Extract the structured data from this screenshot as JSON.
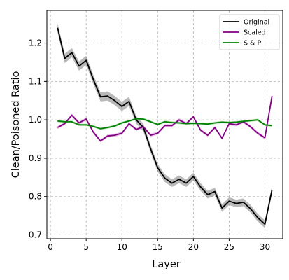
{
  "chart_data": {
    "type": "line",
    "title": "",
    "xlabel": "Layer",
    "ylabel": "Clean/Poisoned Ratio",
    "xlim": [
      -0.5,
      32.5
    ],
    "ylim": [
      0.69,
      1.285
    ],
    "xticks": [
      0,
      5,
      10,
      15,
      20,
      25,
      30
    ],
    "yticks": [
      0.7,
      0.8,
      0.9,
      1.0,
      1.1,
      1.2
    ],
    "xtick_labels": [
      "0",
      "5",
      "10",
      "15",
      "20",
      "25",
      "30"
    ],
    "ytick_labels": [
      "0.7",
      "0.8",
      "0.9",
      "1.0",
      "1.1",
      "1.2"
    ],
    "grid": true,
    "legend_position": "top-right",
    "x": [
      1,
      2,
      3,
      4,
      5,
      6,
      7,
      8,
      9,
      10,
      11,
      12,
      13,
      14,
      15,
      16,
      17,
      18,
      19,
      20,
      21,
      22,
      23,
      24,
      25,
      26,
      27,
      28,
      29,
      30,
      31
    ],
    "series": [
      {
        "name": "Original",
        "color": "#000000",
        "band_color": "#808080",
        "values": [
          1.24,
          1.16,
          1.175,
          1.14,
          1.155,
          1.105,
          1.06,
          1.062,
          1.05,
          1.035,
          1.048,
          1.0,
          0.98,
          0.925,
          0.875,
          0.848,
          0.835,
          0.845,
          0.835,
          0.852,
          0.825,
          0.805,
          0.813,
          0.77,
          0.788,
          0.782,
          0.785,
          0.768,
          0.745,
          0.728,
          0.818
        ],
        "band": [
          0.012,
          0.012,
          0.012,
          0.012,
          0.012,
          0.012,
          0.012,
          0.012,
          0.012,
          0.012,
          0.012,
          0.01,
          0.01,
          0.01,
          0.01,
          0.01,
          0.01,
          0.01,
          0.01,
          0.01,
          0.01,
          0.01,
          0.01,
          0.01,
          0.01,
          0.01,
          0.01,
          0.01,
          0.01,
          0.01,
          0.01
        ]
      },
      {
        "name": "Scaled",
        "color": "#800080",
        "band_color": "#d58cd5",
        "values": [
          0.98,
          0.99,
          1.012,
          0.992,
          1.002,
          0.968,
          0.945,
          0.958,
          0.96,
          0.965,
          0.99,
          0.975,
          0.982,
          0.96,
          0.965,
          0.985,
          0.985,
          1.0,
          0.99,
          1.008,
          0.973,
          0.96,
          0.98,
          0.952,
          0.99,
          0.987,
          0.995,
          0.982,
          0.965,
          0.953,
          1.062
        ],
        "band": [
          0.004,
          0.004,
          0.004,
          0.004,
          0.004,
          0.004,
          0.004,
          0.004,
          0.004,
          0.004,
          0.004,
          0.004,
          0.004,
          0.004,
          0.004,
          0.004,
          0.004,
          0.004,
          0.004,
          0.004,
          0.004,
          0.004,
          0.004,
          0.004,
          0.004,
          0.004,
          0.004,
          0.004,
          0.004,
          0.004,
          0.004
        ]
      },
      {
        "name": "S & P",
        "color": "#008000",
        "band_color": "#7fcf7f",
        "values": [
          0.997,
          0.995,
          0.995,
          0.987,
          0.987,
          0.983,
          0.977,
          0.98,
          0.984,
          0.992,
          0.997,
          1.003,
          1.002,
          0.995,
          0.988,
          0.995,
          0.993,
          0.992,
          0.99,
          0.991,
          0.99,
          0.989,
          0.992,
          0.994,
          0.993,
          0.994,
          0.996,
          0.998,
          1.0,
          0.987,
          0.985
        ],
        "band": [
          0.003,
          0.003,
          0.003,
          0.003,
          0.003,
          0.003,
          0.003,
          0.003,
          0.003,
          0.003,
          0.003,
          0.003,
          0.003,
          0.003,
          0.003,
          0.003,
          0.003,
          0.003,
          0.003,
          0.003,
          0.003,
          0.003,
          0.003,
          0.003,
          0.003,
          0.003,
          0.003,
          0.003,
          0.003,
          0.003,
          0.003
        ]
      }
    ]
  }
}
